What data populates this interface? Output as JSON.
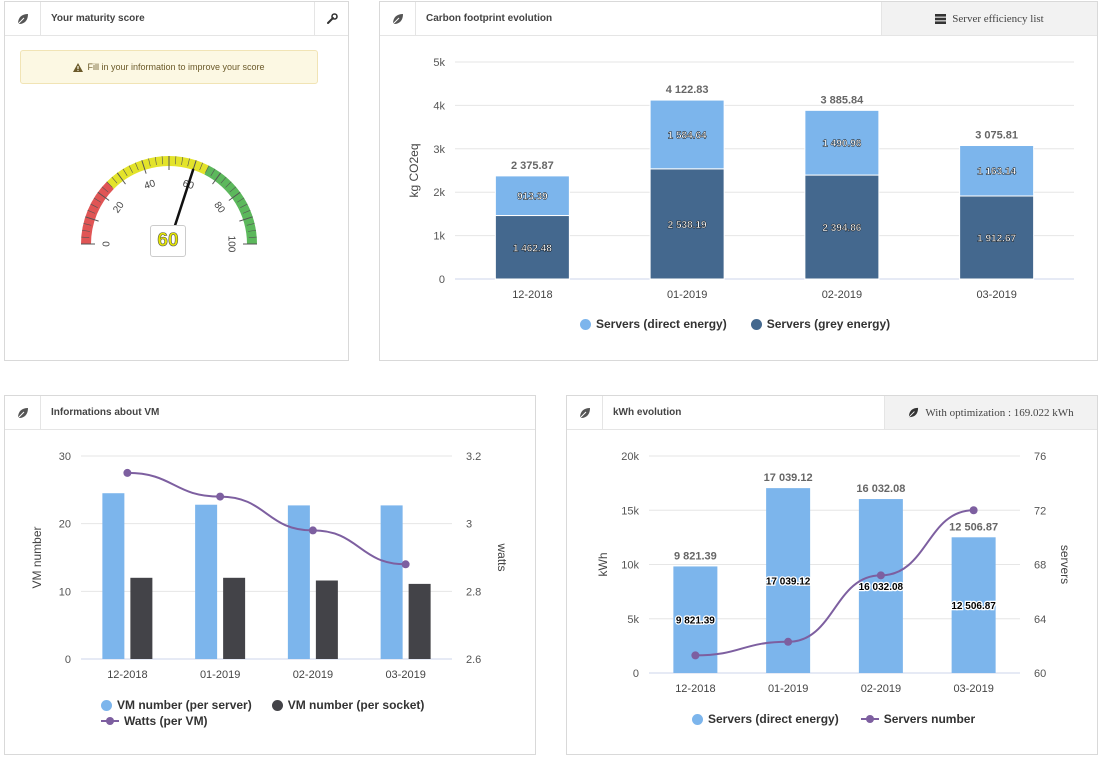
{
  "maturity": {
    "title": "Your maturity score",
    "alert": "Fill in your information to improve your score",
    "score": "60",
    "gauge_ticks": [
      "0",
      "20",
      "40",
      "60",
      "80",
      "100"
    ],
    "gauge_value": 60
  },
  "carbon": {
    "title": "Carbon footprint evolution",
    "right_button": "Server efficiency list",
    "chart_data": {
      "type": "bar",
      "stacked": true,
      "categories": [
        "12-2018",
        "01-2019",
        "02-2019",
        "03-2019"
      ],
      "series": [
        {
          "name": "Servers (grey energy)",
          "values": [
            1462.48,
            2538.19,
            2394.86,
            1912.67
          ],
          "labels": [
            "1 462.48",
            "2 538.19",
            "2 394.86",
            "1 912.67"
          ],
          "color": "#44688e"
        },
        {
          "name": "Servers (direct energy)",
          "values": [
            913.39,
            1584.64,
            1490.98,
            1163.14
          ],
          "labels": [
            "913.39",
            "1 584.64",
            "1 490.98",
            "1 163.14"
          ],
          "color": "#7cb5ec"
        }
      ],
      "totals": [
        "2 375.87",
        "4 122.83",
        "3 885.84",
        "3 075.81"
      ],
      "ylabel": "kg CO2eq",
      "ylim": [
        0,
        5000
      ],
      "yticks": [
        "0",
        "1k",
        "2k",
        "3k",
        "4k",
        "5k"
      ],
      "legend": [
        "Servers (direct energy)",
        "Servers (grey energy)"
      ]
    }
  },
  "vm": {
    "title": "Informations about VM",
    "chart_data": {
      "type": "bar",
      "categories": [
        "12-2018",
        "01-2019",
        "02-2019",
        "03-2019"
      ],
      "series": [
        {
          "name": "VM number (per server)",
          "values": [
            24.5,
            22.8,
            22.7,
            22.7
          ],
          "color": "#7cb5ec"
        },
        {
          "name": "VM number (per socket)",
          "values": [
            12,
            12,
            11.6,
            11.1
          ],
          "color": "#434348"
        },
        {
          "name": "Watts (per VM)",
          "type": "line",
          "values": [
            3.15,
            3.08,
            2.98,
            2.88
          ],
          "color": "#7d5fa0"
        }
      ],
      "ylabel": "VM number",
      "ylim": [
        0,
        30
      ],
      "yticks": [
        "0",
        "10",
        "20",
        "30"
      ],
      "y2label": "watts",
      "y2lim": [
        2.6,
        3.2
      ],
      "y2ticks": [
        "2.6",
        "2.8",
        "3",
        "3.2"
      ],
      "legend": [
        "VM number (per server)",
        "VM number (per socket)",
        "Watts (per VM)"
      ]
    }
  },
  "kwh": {
    "title": "kWh evolution",
    "right_button": "With optimization : 169.022 kWh",
    "chart_data": {
      "type": "bar",
      "categories": [
        "12-2018",
        "01-2019",
        "02-2019",
        "03-2019"
      ],
      "series": [
        {
          "name": "Servers (direct energy)",
          "values": [
            9821.39,
            17039.12,
            16032.08,
            12506.87
          ],
          "labels": [
            "9 821.39",
            "17 039.12",
            "16 032.08",
            "12 506.87"
          ],
          "color": "#7cb5ec"
        },
        {
          "name": "Servers number",
          "type": "line",
          "values": [
            61.3,
            62.3,
            67.2,
            72
          ],
          "color": "#7d5fa0"
        }
      ],
      "ylabel": "kWh",
      "ylim": [
        0,
        20000
      ],
      "yticks": [
        "0",
        "5k",
        "10k",
        "15k",
        "20k"
      ],
      "y2label": "servers",
      "y2lim": [
        60,
        76
      ],
      "y2ticks": [
        "60",
        "64",
        "68",
        "72",
        "76"
      ],
      "legend": [
        "Servers (direct energy)",
        "Servers number"
      ]
    }
  }
}
